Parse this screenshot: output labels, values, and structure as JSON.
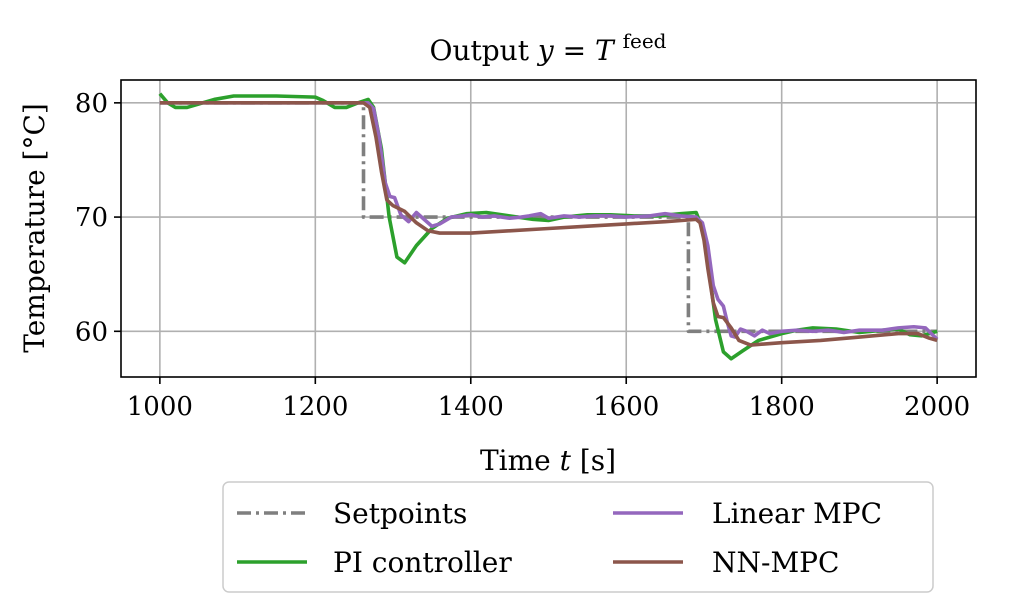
{
  "chart_data": {
    "type": "line",
    "title": {
      "prefix": "Output ",
      "var": "y",
      "eq": " = ",
      "sym": "T",
      "sup": "feed"
    },
    "xlabel": {
      "prefix": "Time ",
      "var": "t",
      "suffix": " [s]"
    },
    "ylabel": "Temperature [°C]",
    "xlim": [
      950,
      2050
    ],
    "ylim": [
      56,
      82
    ],
    "xticks": [
      1000,
      1200,
      1400,
      1600,
      1800,
      2000
    ],
    "yticks": [
      60,
      70,
      80
    ],
    "grid": true,
    "legend_position": "bottom",
    "colors": {
      "setpoints": "#7f7f7f",
      "pi": "#2ca02c",
      "linear_mpc": "#9467bd",
      "nn_mpc": "#8c564b",
      "grid": "#b0b0b0"
    },
    "series": [
      {
        "key": "setpoints",
        "name": "Setpoints",
        "style": "dashdot",
        "points": [
          [
            1000,
            80
          ],
          [
            1262,
            80
          ],
          [
            1262,
            70
          ],
          [
            1680,
            70
          ],
          [
            1680,
            60
          ],
          [
            2000,
            60
          ]
        ]
      },
      {
        "key": "pi",
        "name": "PI controller",
        "style": "solid",
        "points": [
          [
            1000,
            80.8
          ],
          [
            1010,
            80.0
          ],
          [
            1020,
            79.6
          ],
          [
            1035,
            79.6
          ],
          [
            1050,
            79.9
          ],
          [
            1070,
            80.3
          ],
          [
            1095,
            80.6
          ],
          [
            1150,
            80.6
          ],
          [
            1200,
            80.5
          ],
          [
            1210,
            80.2
          ],
          [
            1225,
            79.6
          ],
          [
            1240,
            79.6
          ],
          [
            1255,
            80.0
          ],
          [
            1268,
            80.3
          ],
          [
            1275,
            79.6
          ],
          [
            1285,
            76.0
          ],
          [
            1295,
            70.0
          ],
          [
            1305,
            66.5
          ],
          [
            1315,
            66.0
          ],
          [
            1330,
            67.5
          ],
          [
            1350,
            69.0
          ],
          [
            1370,
            69.9
          ],
          [
            1395,
            70.3
          ],
          [
            1420,
            70.4
          ],
          [
            1440,
            70.2
          ],
          [
            1460,
            70.0
          ],
          [
            1480,
            69.8
          ],
          [
            1500,
            69.7
          ],
          [
            1520,
            70.0
          ],
          [
            1550,
            70.2
          ],
          [
            1580,
            70.2
          ],
          [
            1610,
            70.1
          ],
          [
            1640,
            70.1
          ],
          [
            1670,
            70.3
          ],
          [
            1690,
            70.4
          ],
          [
            1698,
            69.0
          ],
          [
            1705,
            66.0
          ],
          [
            1715,
            61.0
          ],
          [
            1725,
            58.2
          ],
          [
            1735,
            57.6
          ],
          [
            1750,
            58.3
          ],
          [
            1770,
            59.2
          ],
          [
            1800,
            59.8
          ],
          [
            1820,
            60.1
          ],
          [
            1840,
            60.3
          ],
          [
            1870,
            60.2
          ],
          [
            1900,
            59.9
          ],
          [
            1930,
            60.1
          ],
          [
            1950,
            60.2
          ],
          [
            1965,
            59.7
          ],
          [
            1980,
            59.6
          ],
          [
            2000,
            60.0
          ]
        ]
      },
      {
        "key": "linear_mpc",
        "name": "Linear MPC",
        "style": "solid",
        "points": [
          [
            1000,
            80.0
          ],
          [
            1100,
            80.0
          ],
          [
            1200,
            80.0
          ],
          [
            1260,
            80.0
          ],
          [
            1268,
            80.0
          ],
          [
            1275,
            79.5
          ],
          [
            1282,
            77.0
          ],
          [
            1290,
            73.0
          ],
          [
            1296,
            71.8
          ],
          [
            1302,
            71.7
          ],
          [
            1310,
            70.2
          ],
          [
            1320,
            69.6
          ],
          [
            1330,
            70.4
          ],
          [
            1340,
            69.8
          ],
          [
            1350,
            69.2
          ],
          [
            1360,
            69.4
          ],
          [
            1375,
            70.0
          ],
          [
            1390,
            70.1
          ],
          [
            1400,
            70.2
          ],
          [
            1415,
            70.0
          ],
          [
            1430,
            70.1
          ],
          [
            1450,
            69.9
          ],
          [
            1465,
            70.0
          ],
          [
            1475,
            70.1
          ],
          [
            1490,
            70.3
          ],
          [
            1500,
            69.9
          ],
          [
            1520,
            70.1
          ],
          [
            1540,
            70.0
          ],
          [
            1560,
            70.1
          ],
          [
            1580,
            70.1
          ],
          [
            1600,
            70.0
          ],
          [
            1630,
            70.1
          ],
          [
            1650,
            70.3
          ],
          [
            1670,
            70.1
          ],
          [
            1690,
            70.0
          ],
          [
            1698,
            69.5
          ],
          [
            1705,
            67.5
          ],
          [
            1712,
            64.0
          ],
          [
            1718,
            62.8
          ],
          [
            1725,
            62.2
          ],
          [
            1730,
            60.8
          ],
          [
            1735,
            59.6
          ],
          [
            1740,
            59.5
          ],
          [
            1747,
            60.2
          ],
          [
            1755,
            60.0
          ],
          [
            1765,
            59.6
          ],
          [
            1775,
            60.1
          ],
          [
            1785,
            59.8
          ],
          [
            1800,
            60.0
          ],
          [
            1820,
            60.1
          ],
          [
            1840,
            60.0
          ],
          [
            1860,
            60.1
          ],
          [
            1880,
            59.9
          ],
          [
            1900,
            60.1
          ],
          [
            1930,
            60.1
          ],
          [
            1950,
            60.3
          ],
          [
            1970,
            60.4
          ],
          [
            1985,
            60.3
          ],
          [
            2000,
            59.3
          ]
        ]
      },
      {
        "key": "nn_mpc",
        "name": "NN-MPC",
        "style": "solid",
        "points": [
          [
            1000,
            80.0
          ],
          [
            1100,
            80.0
          ],
          [
            1200,
            80.0
          ],
          [
            1262,
            80.0
          ],
          [
            1270,
            79.6
          ],
          [
            1278,
            77.0
          ],
          [
            1285,
            74.0
          ],
          [
            1292,
            71.5
          ],
          [
            1300,
            71.0
          ],
          [
            1315,
            70.5
          ],
          [
            1330,
            69.5
          ],
          [
            1345,
            68.8
          ],
          [
            1360,
            68.6
          ],
          [
            1400,
            68.6
          ],
          [
            1450,
            68.8
          ],
          [
            1500,
            69.0
          ],
          [
            1550,
            69.2
          ],
          [
            1600,
            69.4
          ],
          [
            1650,
            69.6
          ],
          [
            1690,
            69.8
          ],
          [
            1695,
            69.5
          ],
          [
            1700,
            68.0
          ],
          [
            1705,
            65.5
          ],
          [
            1712,
            62.5
          ],
          [
            1718,
            61.3
          ],
          [
            1725,
            61.2
          ],
          [
            1735,
            60.3
          ],
          [
            1745,
            59.2
          ],
          [
            1760,
            58.8
          ],
          [
            1800,
            59.0
          ],
          [
            1850,
            59.2
          ],
          [
            1900,
            59.5
          ],
          [
            1950,
            59.8
          ],
          [
            1975,
            59.8
          ],
          [
            1990,
            59.4
          ],
          [
            2000,
            59.2
          ]
        ]
      }
    ]
  }
}
